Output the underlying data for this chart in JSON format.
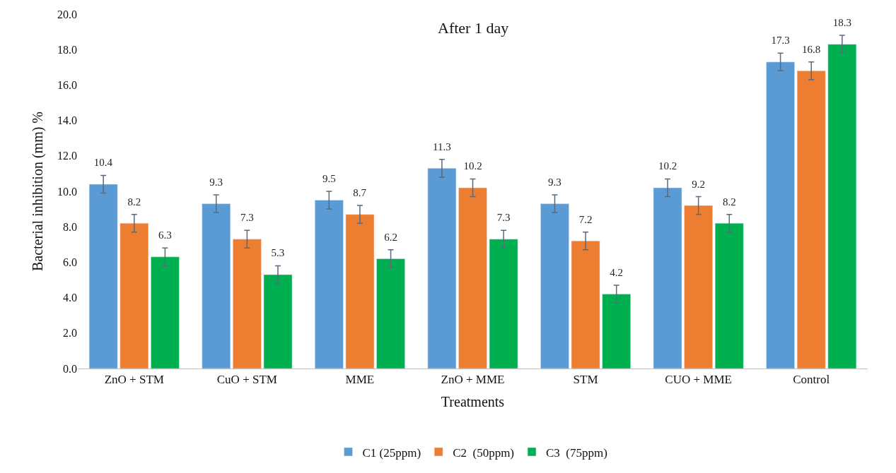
{
  "chart_data": {
    "type": "bar",
    "title": "After 1 day",
    "xlabel": "Treatments",
    "ylabel": "Bacterial inhibition (mm) %",
    "categories": [
      "ZnO + STM",
      "CuO + STM",
      "MME",
      "ZnO + MME",
      "STM",
      "CUO + MME",
      "Control"
    ],
    "series": [
      {
        "name": "C1 (25ppm)",
        "color": "#5b9bd5",
        "values": [
          10.4,
          9.3,
          9.5,
          11.3,
          9.3,
          10.2,
          17.3
        ],
        "errors": [
          0.5,
          0.5,
          0.5,
          0.5,
          0.5,
          0.5,
          0.5
        ]
      },
      {
        "name": "C2  (50ppm)",
        "color": "#ed7d31",
        "values": [
          8.2,
          7.3,
          8.7,
          10.2,
          7.2,
          9.2,
          16.8
        ],
        "errors": [
          0.5,
          0.5,
          0.5,
          0.5,
          0.5,
          0.5,
          0.5
        ]
      },
      {
        "name": "C3  (75ppm)",
        "color": "#00b050",
        "values": [
          6.3,
          5.3,
          6.2,
          7.3,
          4.2,
          8.2,
          18.3
        ],
        "errors": [
          0.5,
          0.5,
          0.5,
          0.5,
          0.5,
          0.5,
          0.5
        ]
      }
    ],
    "ylim": [
      0,
      20
    ],
    "yticks": [
      {
        "value": 0,
        "label": "0.0"
      },
      {
        "value": 2,
        "label": "2.0"
      },
      {
        "value": 4,
        "label": "4.0"
      },
      {
        "value": 6,
        "label": "6.0"
      },
      {
        "value": 8,
        "label": "8.0"
      },
      {
        "value": 10,
        "label": "10.0"
      },
      {
        "value": 12,
        "label": "12.0"
      },
      {
        "value": 14,
        "label": "14.0"
      },
      {
        "value": 16,
        "label": "16.0"
      },
      {
        "value": 18,
        "label": "18.0"
      },
      {
        "value": 20,
        "label": "20.0"
      }
    ],
    "data_labels": true,
    "legend": "bottom",
    "grid": false
  }
}
